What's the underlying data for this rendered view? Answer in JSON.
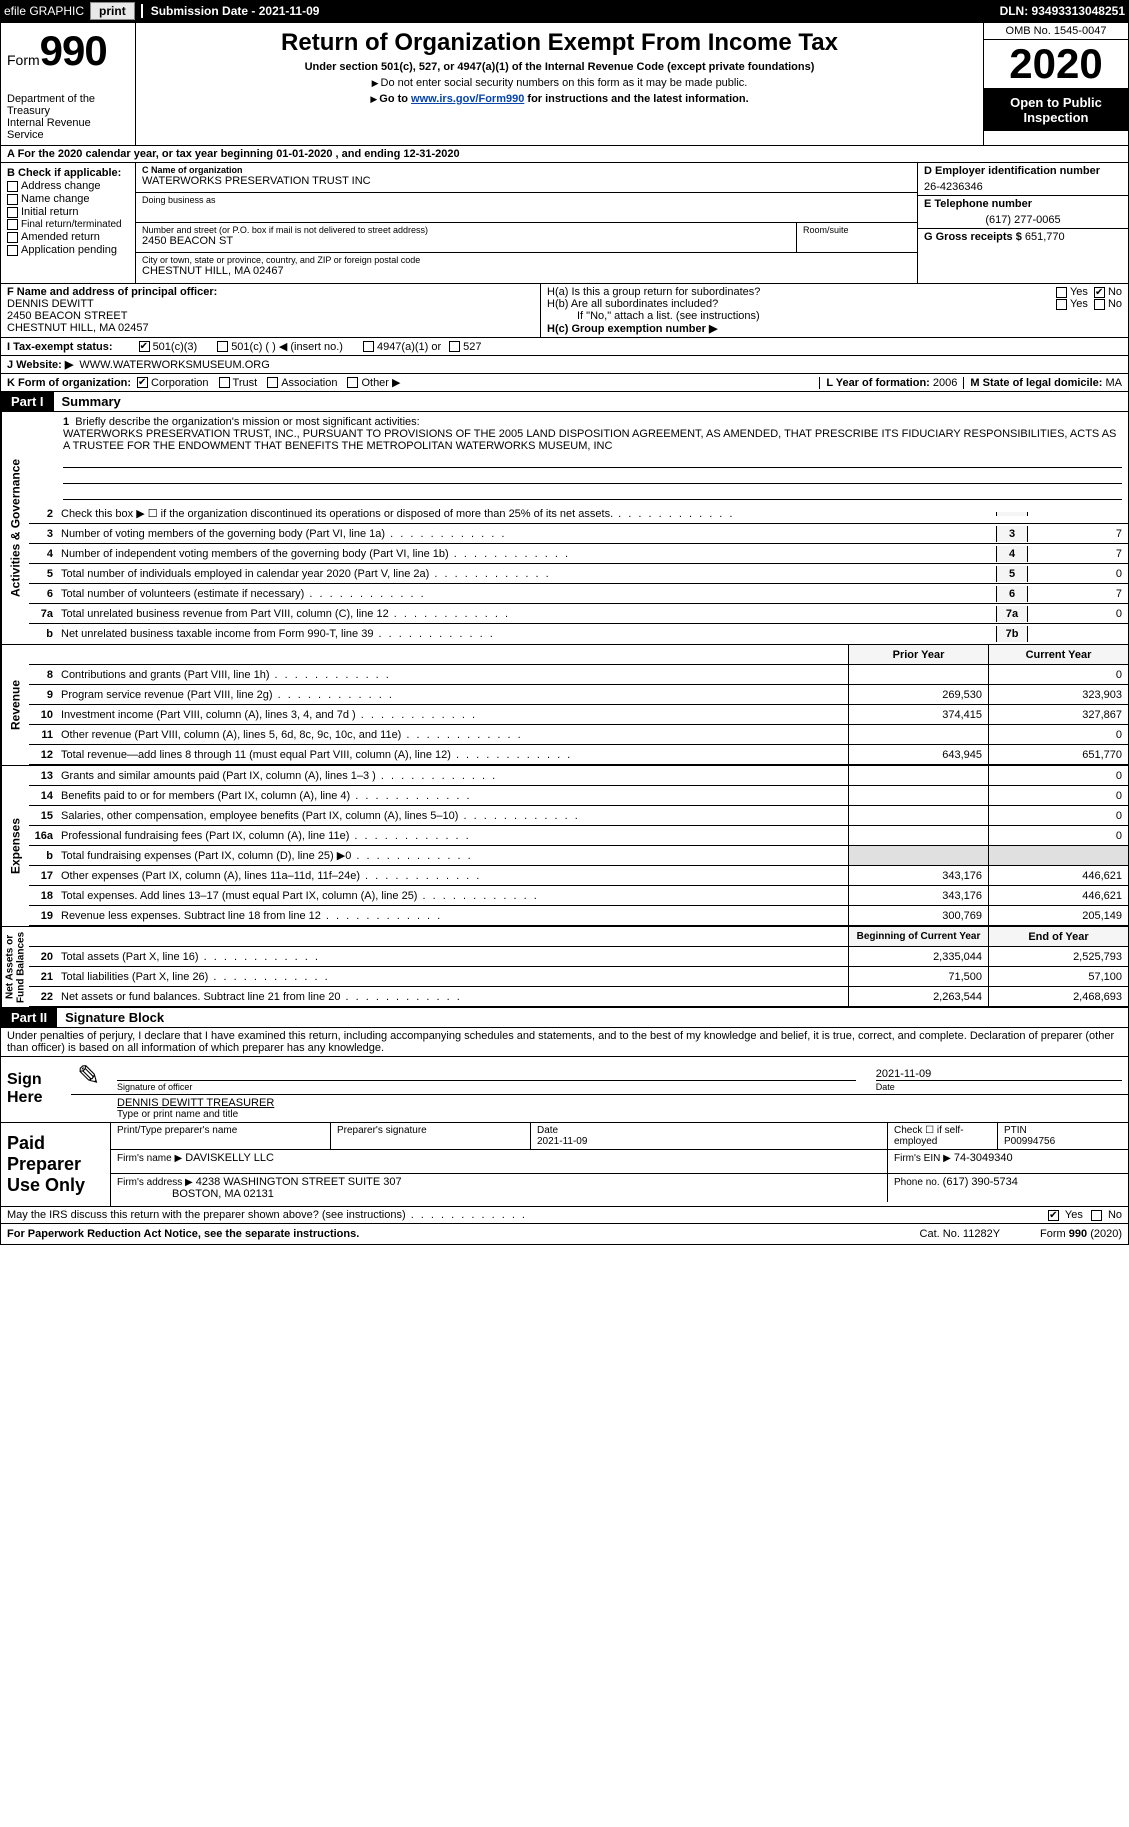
{
  "topbar": {
    "efile_label": "efile GRAPHIC",
    "print_btn": "print",
    "submission_label": "Submission Date - 2021-11-09",
    "dln": "DLN: 93493313048251"
  },
  "header": {
    "form_word": "Form",
    "form_number": "990",
    "dept1": "Department of the Treasury",
    "dept2": "Internal Revenue Service",
    "title": "Return of Organization Exempt From Income Tax",
    "subtitle": "Under section 501(c), 527, or 4947(a)(1) of the Internal Revenue Code (except private foundations)",
    "note1": "Do not enter social security numbers on this form as it may be made public.",
    "note2_pre": "Go to ",
    "note2_link": "www.irs.gov/Form990",
    "note2_post": " for instructions and the latest information.",
    "omb": "OMB No. 1545-0047",
    "year": "2020",
    "open1": "Open to Public",
    "open2": "Inspection"
  },
  "row_a": "A For the 2020 calendar year, or tax year beginning 01-01-2020   , and ending 12-31-2020",
  "col_b": {
    "head": "B Check if applicable:",
    "opts": [
      "Address change",
      "Name change",
      "Initial return",
      "Final return/terminated",
      "Amended return",
      "Application pending"
    ]
  },
  "col_c": {
    "name_lab": "C Name of organization",
    "name": "WATERWORKS PRESERVATION TRUST INC",
    "dba_lab": "Doing business as",
    "dba": "",
    "addr_lab": "Number and street (or P.O. box if mail is not delivered to street address)",
    "addr": "2450 BEACON ST",
    "room_lab": "Room/suite",
    "room": "",
    "city_lab": "City or town, state or province, country, and ZIP or foreign postal code",
    "city": "CHESTNUT HILL, MA  02467"
  },
  "col_deg": {
    "d_lab": "D Employer identification number",
    "d_val": "26-4236346",
    "e_lab": "E Telephone number",
    "e_val": "(617) 277-0065",
    "g_lab": "G Gross receipts $",
    "g_val": "651,770"
  },
  "row_f": {
    "lab": "F Name and address of principal officer:",
    "l1": "DENNIS DEWITT",
    "l2": "2450 BEACON STREET",
    "l3": "CHESTNUT HILL, MA  02457"
  },
  "row_h": {
    "a_lab": "H(a)  Is this a group return for subordinates?",
    "b_lab": "H(b)  Are all subordinates included?",
    "b_note": "If \"No,\" attach a list. (see instructions)",
    "c_lab": "H(c)  Group exemption number ▶",
    "yes": "Yes",
    "no": "No"
  },
  "row_i": {
    "lab": "I   Tax-exempt status:",
    "o1": "501(c)(3)",
    "o2": "501(c) (   ) ◀ (insert no.)",
    "o3": "4947(a)(1) or",
    "o4": "527"
  },
  "row_j": {
    "lab": "J   Website: ▶",
    "val": "WWW.WATERWORKSMUSEUM.ORG"
  },
  "row_k": {
    "lab": "K Form of organization:",
    "o1": "Corporation",
    "o2": "Trust",
    "o3": "Association",
    "o4": "Other ▶",
    "l_lab": "L Year of formation:",
    "l_val": "2006",
    "m_lab": "M State of legal domicile:",
    "m_val": "MA"
  },
  "part1": {
    "num": "Part I",
    "title": "Summary"
  },
  "mission": {
    "n": "1",
    "lab": "Briefly describe the organization's mission or most significant activities:",
    "text": "WATERWORKS PRESERVATION TRUST, INC., PURSUANT TO PROVISIONS OF THE 2005 LAND DISPOSITION AGREEMENT, AS AMENDED, THAT PRESCRIBE ITS FIDUCIARY RESPONSIBILITIES, ACTS AS A TRUSTEE FOR THE ENDOWMENT THAT BENEFITS THE METROPOLITAN WATERWORKS MUSEUM, INC"
  },
  "gov_lines": [
    {
      "n": "2",
      "t": "Check this box ▶ ☐  if the organization discontinued its operations or disposed of more than 25% of its net assets.",
      "bn": "",
      "v": ""
    },
    {
      "n": "3",
      "t": "Number of voting members of the governing body (Part VI, line 1a)",
      "bn": "3",
      "v": "7"
    },
    {
      "n": "4",
      "t": "Number of independent voting members of the governing body (Part VI, line 1b)",
      "bn": "4",
      "v": "7"
    },
    {
      "n": "5",
      "t": "Total number of individuals employed in calendar year 2020 (Part V, line 2a)",
      "bn": "5",
      "v": "0"
    },
    {
      "n": "6",
      "t": "Total number of volunteers (estimate if necessary)",
      "bn": "6",
      "v": "7"
    },
    {
      "n": "7a",
      "t": "Total unrelated business revenue from Part VIII, column (C), line 12",
      "bn": "7a",
      "v": "0"
    },
    {
      "n": "b",
      "t": "Net unrelated business taxable income from Form 990-T, line 39",
      "bn": "7b",
      "v": ""
    }
  ],
  "rev_hdr": {
    "prior": "Prior Year",
    "curr": "Current Year"
  },
  "rev_lines": [
    {
      "n": "8",
      "t": "Contributions and grants (Part VIII, line 1h)",
      "v1": "",
      "v2": "0"
    },
    {
      "n": "9",
      "t": "Program service revenue (Part VIII, line 2g)",
      "v1": "269,530",
      "v2": "323,903"
    },
    {
      "n": "10",
      "t": "Investment income (Part VIII, column (A), lines 3, 4, and 7d )",
      "v1": "374,415",
      "v2": "327,867"
    },
    {
      "n": "11",
      "t": "Other revenue (Part VIII, column (A), lines 5, 6d, 8c, 9c, 10c, and 11e)",
      "v1": "",
      "v2": "0"
    },
    {
      "n": "12",
      "t": "Total revenue—add lines 8 through 11 (must equal Part VIII, column (A), line 12)",
      "v1": "643,945",
      "v2": "651,770"
    }
  ],
  "exp_lines": [
    {
      "n": "13",
      "t": "Grants and similar amounts paid (Part IX, column (A), lines 1–3 )",
      "v1": "",
      "v2": "0"
    },
    {
      "n": "14",
      "t": "Benefits paid to or for members (Part IX, column (A), line 4)",
      "v1": "",
      "v2": "0"
    },
    {
      "n": "15",
      "t": "Salaries, other compensation, employee benefits (Part IX, column (A), lines 5–10)",
      "v1": "",
      "v2": "0"
    },
    {
      "n": "16a",
      "t": "Professional fundraising fees (Part IX, column (A), line 11e)",
      "v1": "",
      "v2": "0"
    },
    {
      "n": "b",
      "t": "Total fundraising expenses (Part IX, column (D), line 25) ▶0",
      "v1": "",
      "v2": "",
      "shaded": true
    },
    {
      "n": "17",
      "t": "Other expenses (Part IX, column (A), lines 11a–11d, 11f–24e)",
      "v1": "343,176",
      "v2": "446,621"
    },
    {
      "n": "18",
      "t": "Total expenses. Add lines 13–17 (must equal Part IX, column (A), line 25)",
      "v1": "343,176",
      "v2": "446,621"
    },
    {
      "n": "19",
      "t": "Revenue less expenses. Subtract line 18 from line 12",
      "v1": "300,769",
      "v2": "205,149"
    }
  ],
  "na_hdr": {
    "prior": "Beginning of Current Year",
    "curr": "End of Year"
  },
  "na_lines": [
    {
      "n": "20",
      "t": "Total assets (Part X, line 16)",
      "v1": "2,335,044",
      "v2": "2,525,793"
    },
    {
      "n": "21",
      "t": "Total liabilities (Part X, line 26)",
      "v1": "71,500",
      "v2": "57,100"
    },
    {
      "n": "22",
      "t": "Net assets or fund balances. Subtract line 21 from line 20",
      "v1": "2,263,544",
      "v2": "2,468,693"
    }
  ],
  "vert": {
    "gov": "Activities & Governance",
    "rev": "Revenue",
    "exp": "Expenses",
    "na": "Net Assets or Fund Balances"
  },
  "part2": {
    "num": "Part II",
    "title": "Signature Block"
  },
  "sig_decl": "Under penalties of perjury, I declare that I have examined this return, including accompanying schedules and statements, and to the best of my knowledge and belief, it is true, correct, and complete. Declaration of preparer (other than officer) is based on all information of which preparer has any knowledge.",
  "sign": {
    "here": "Sign Here",
    "sig_lab": "Signature of officer",
    "date_lab": "Date",
    "date_val": "2021-11-09",
    "name_lab": "Type or print name and title",
    "name_val": "DENNIS DEWITT TREASURER"
  },
  "prep": {
    "here": "Paid Preparer Use Only",
    "h1": "Print/Type preparer's name",
    "h2": "Preparer's signature",
    "h3": "Date",
    "h3v": "2021-11-09",
    "h4": "Check ☐ if self-employed",
    "h5": "PTIN",
    "h5v": "P00994756",
    "firm_lab": "Firm's name   ▶",
    "firm": "DAVISKELLY LLC",
    "ein_lab": "Firm's EIN ▶",
    "ein": "74-3049340",
    "addr_lab": "Firm's address ▶",
    "addr1": "4238 WASHINGTON STREET SUITE 307",
    "addr2": "BOSTON, MA  02131",
    "phone_lab": "Phone no.",
    "phone": "(617) 390-5734"
  },
  "discuss": {
    "t": "May the IRS discuss this return with the preparer shown above? (see instructions)",
    "yes": "Yes",
    "no": "No"
  },
  "footer": {
    "l": "For Paperwork Reduction Act Notice, see the separate instructions.",
    "c": "Cat. No. 11282Y",
    "r": "Form 990 (2020)"
  },
  "colors": {
    "link": "#0645ad",
    "bg": "#ffffff",
    "border": "#000000",
    "shade": "#e0e0e0"
  }
}
